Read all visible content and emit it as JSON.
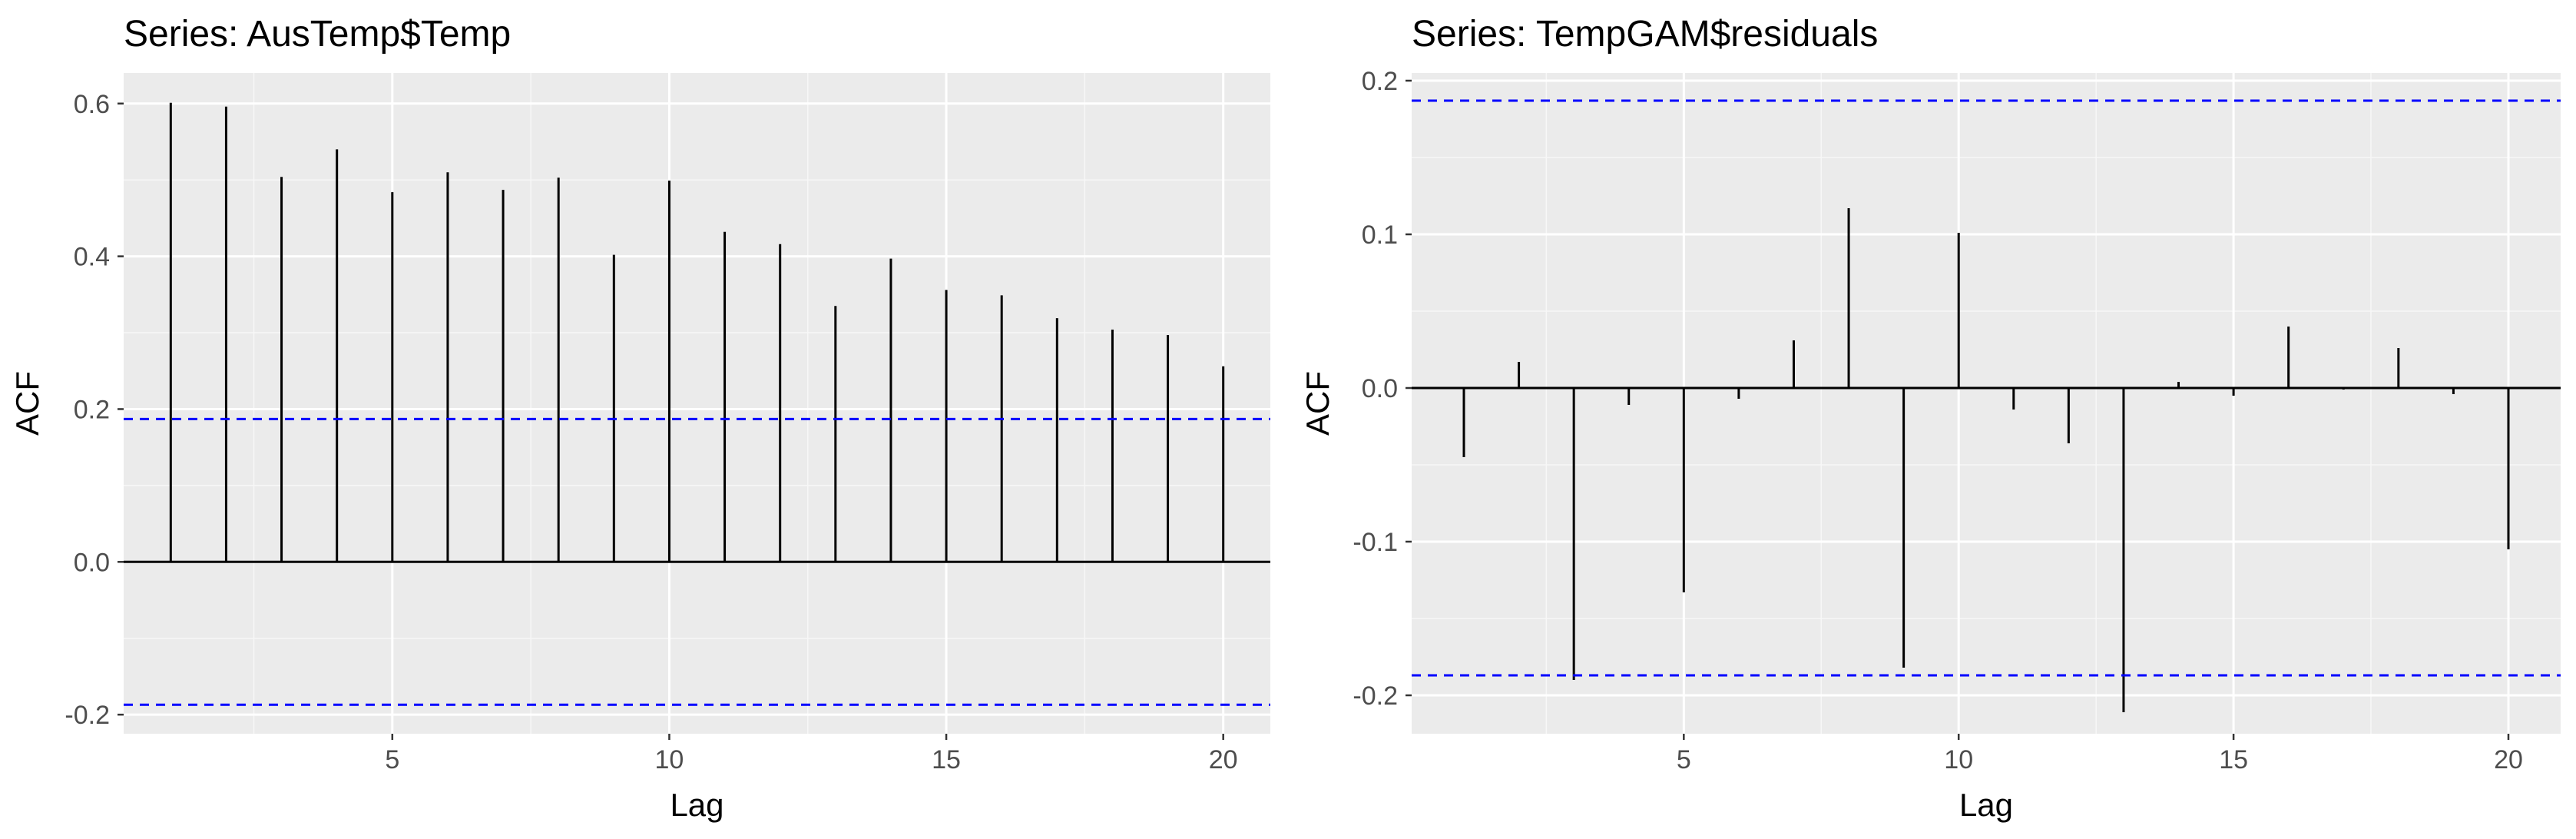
{
  "chart_data": [
    {
      "type": "bar",
      "title": "Series: AusTemp$Temp",
      "xlabel": "Lag",
      "ylabel": "ACF",
      "xlim": [
        0.15,
        20.85
      ],
      "ylim": [
        -0.225,
        0.64
      ],
      "x_ticks": [
        5,
        10,
        15,
        20
      ],
      "x_tick_labels": [
        "5",
        "10",
        "15",
        "20"
      ],
      "y_ticks": [
        -0.2,
        0,
        0.2,
        0.4,
        0.6
      ],
      "y_tick_labels": [
        "-0.2",
        "0.0",
        "0.2",
        "0.4",
        "0.6"
      ],
      "confidence_bound": 0.187,
      "grid": true,
      "lags": [
        1,
        2,
        3,
        4,
        5,
        6,
        7,
        8,
        9,
        10,
        11,
        12,
        13,
        14,
        15,
        16,
        17,
        18,
        19,
        20
      ],
      "values": [
        0.601,
        0.596,
        0.504,
        0.54,
        0.484,
        0.51,
        0.487,
        0.503,
        0.402,
        0.499,
        0.432,
        0.416,
        0.335,
        0.397,
        0.356,
        0.349,
        0.319,
        0.304,
        0.297,
        0.256
      ]
    },
    {
      "type": "bar",
      "title": "Series: TempGAM$residuals",
      "xlabel": "Lag",
      "ylabel": "ACF",
      "xlim": [
        0.05,
        20.95
      ],
      "ylim": [
        -0.225,
        0.205
      ],
      "x_ticks": [
        5,
        10,
        15,
        20
      ],
      "x_tick_labels": [
        "5",
        "10",
        "15",
        "20"
      ],
      "y_ticks": [
        -0.2,
        -0.1,
        0,
        0.1,
        0.2
      ],
      "y_tick_labels": [
        "-0.2",
        "-0.1",
        "0.0",
        "0.1",
        "0.2"
      ],
      "confidence_bound": 0.187,
      "grid": true,
      "lags": [
        1,
        2,
        3,
        4,
        5,
        6,
        7,
        8,
        9,
        10,
        11,
        12,
        13,
        14,
        15,
        16,
        17,
        18,
        19,
        20
      ],
      "values": [
        -0.045,
        0.017,
        -0.19,
        -0.011,
        -0.133,
        -0.007,
        0.031,
        0.117,
        -0.182,
        0.101,
        -0.014,
        -0.036,
        -0.211,
        0.004,
        -0.005,
        0.04,
        -0.001,
        0.026,
        -0.004,
        -0.105
      ]
    }
  ],
  "colors": {
    "panel": "#ebebeb",
    "grid_major": "#ffffff",
    "grid_minor": "#f7f7f7",
    "segment": "#000000",
    "zero_line": "#000000",
    "bound": "#0000ff",
    "tick_text": "#4d4d4d"
  }
}
